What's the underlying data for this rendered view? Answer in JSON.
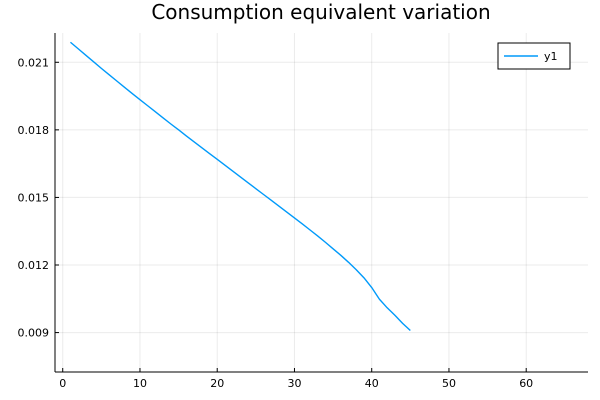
{
  "chart_data": {
    "type": "line",
    "title": "Consumption equivalent variation",
    "xlabel": "",
    "ylabel": "",
    "xlim": [
      -1,
      68
    ],
    "ylim": [
      0.00725,
      0.0223
    ],
    "xticks": [
      0,
      10,
      20,
      30,
      40,
      50,
      60
    ],
    "xtick_labels": [
      "0",
      "10",
      "20",
      "30",
      "40",
      "50",
      "60"
    ],
    "yticks": [
      0.009,
      0.012,
      0.015,
      0.018,
      0.021
    ],
    "ytick_labels": [
      "0.009",
      "0.012",
      "0.015",
      "0.018",
      "0.021"
    ],
    "grid": true,
    "legend_position": "top-right",
    "series": [
      {
        "name": "y1",
        "color": "#009AFA",
        "x": [
          1,
          2,
          3,
          4,
          5,
          6,
          7,
          8,
          9,
          10,
          11,
          12,
          13,
          14,
          15,
          16,
          17,
          18,
          19,
          20,
          21,
          22,
          23,
          24,
          25,
          26,
          27,
          28,
          29,
          30,
          31,
          32,
          33,
          34,
          35,
          36,
          37,
          38,
          39,
          40,
          41,
          42,
          43,
          44,
          45
        ],
        "y": [
          0.02189,
          0.0216,
          0.02131,
          0.02102,
          0.02073,
          0.02045,
          0.02017,
          0.01989,
          0.01961,
          0.01934,
          0.01907,
          0.0188,
          0.01853,
          0.01826,
          0.018,
          0.01773,
          0.01747,
          0.01721,
          0.01695,
          0.01669,
          0.01643,
          0.01617,
          0.01591,
          0.01565,
          0.01539,
          0.01513,
          0.01487,
          0.01461,
          0.01435,
          0.01409,
          0.01383,
          0.01356,
          0.01329,
          0.01301,
          0.01272,
          0.01243,
          0.01212,
          0.01179,
          0.01143,
          0.011,
          0.01048,
          0.0101,
          0.00977,
          0.00941,
          0.00909
        ]
      }
    ]
  }
}
